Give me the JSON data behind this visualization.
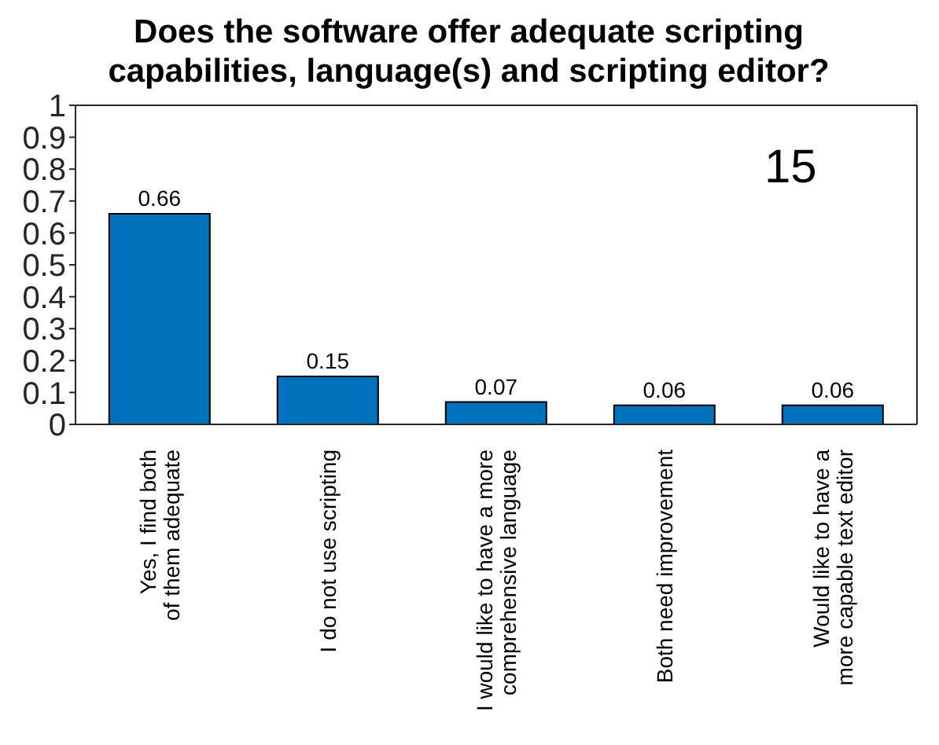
{
  "chart_data": {
    "type": "bar",
    "title": "Does the software offer adequate scripting capabilities, language(s) and scripting editor?",
    "categories": [
      "Yes, I find both of them adequate",
      "I do not use scripting",
      "I would like to have a more comprehensive language",
      "Both need improvement",
      "Would like to have a more capable text editor"
    ],
    "values": [
      0.66,
      0.15,
      0.07,
      0.06,
      0.06
    ],
    "color": "#0072bd",
    "ylim": [
      0,
      1
    ],
    "yticks": [
      0,
      0.1,
      0.2,
      0.3,
      0.4,
      0.5,
      0.6,
      0.7,
      0.8,
      0.9,
      1
    ],
    "data_labels": true,
    "grid": false,
    "legend": false,
    "annotations": [
      "15"
    ]
  }
}
